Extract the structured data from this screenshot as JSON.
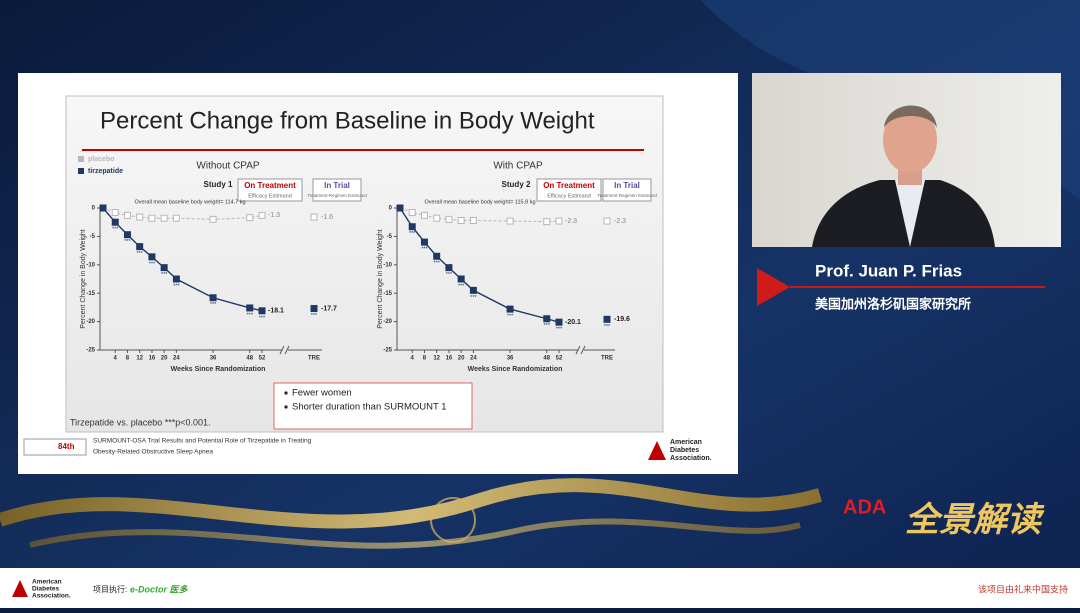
{
  "slide": {
    "title": "Percent Change from Baseline in Body Weight",
    "legend": [
      {
        "name": "placebo",
        "color": "#b7b7b7"
      },
      {
        "name": "tirzepatide",
        "color": "#1f3864"
      }
    ],
    "charts": [
      {
        "type": "line",
        "heading": "Without CPAP",
        "study": "Study 1",
        "on_treatment": {
          "title": "On Treatment",
          "subtitle": "Efficacy Estimand"
        },
        "in_trial": {
          "title": "In Trial",
          "subtitle": "Treatment-Regimen Estimand"
        },
        "note": "Overall mean baseline body weight= 114.7 kg",
        "x_label": "Weeks Since Randomization",
        "y_label": "Percent Change in Body Weight",
        "x": [
          0,
          4,
          8,
          12,
          16,
          20,
          24,
          36,
          48,
          52
        ],
        "xticks": [
          4,
          8,
          12,
          16,
          20,
          24,
          36,
          48,
          52
        ],
        "xlim": [
          0,
          58
        ],
        "ylim": [
          -25,
          0
        ],
        "yticks": [
          0,
          -5,
          -10,
          -15,
          -20,
          -25
        ],
        "tre_label": "TRE",
        "series": [
          {
            "values": [
              0,
              -0.8,
              -1.3,
              -1.6,
              -1.8,
              -1.8,
              -1.8,
              -2.0,
              -1.7,
              -1.3
            ],
            "tre_value": -1.6
          },
          {
            "values": [
              0,
              -2.5,
              -4.7,
              -6.8,
              -8.6,
              -10.5,
              -12.5,
              -15.8,
              -17.6,
              -18.1
            ],
            "tre_value": -17.7,
            "point_labels": [
              null,
              "***",
              "***",
              "***",
              "***",
              "***",
              "***",
              "***",
              "***",
              "***"
            ],
            "tre_point_label": "***"
          }
        ]
      },
      {
        "type": "line",
        "heading": "With CPAP",
        "study": "Study 2",
        "on_treatment": {
          "title": "On Treatment",
          "subtitle": "Efficacy Estimand"
        },
        "in_trial": {
          "title": "In Trial",
          "subtitle": "Treatment-Regimen Estimand"
        },
        "note": "Overall mean baseline body weight= 115.8 kg",
        "x_label": "Weeks Since Randomization",
        "y_label": "Percent Change in Body Weight",
        "x": [
          0,
          4,
          8,
          12,
          16,
          20,
          24,
          36,
          48,
          52
        ],
        "xticks": [
          4,
          8,
          12,
          16,
          20,
          24,
          36,
          48,
          52
        ],
        "xlim": [
          0,
          58
        ],
        "ylim": [
          -25,
          0
        ],
        "yticks": [
          0,
          -5,
          -10,
          -15,
          -20,
          -25
        ],
        "tre_label": "TRE",
        "series": [
          {
            "values": [
              0,
              -0.8,
              -1.3,
              -1.8,
              -2.0,
              -2.2,
              -2.2,
              -2.3,
              -2.4,
              -2.3
            ],
            "tre_value": -2.3
          },
          {
            "values": [
              0,
              -3.3,
              -6.0,
              -8.5,
              -10.5,
              -12.5,
              -14.5,
              -17.8,
              -19.5,
              -20.1
            ],
            "tre_value": -19.6,
            "point_labels": [
              null,
              "***",
              "***",
              "***",
              "***",
              "***",
              "***",
              "***",
              "***",
              "***"
            ],
            "tre_point_label": "***"
          }
        ]
      }
    ],
    "bullets": [
      "Fewer women",
      "Shorter duration than SURMOUNT 1"
    ],
    "footnote": "Tirzepatide vs. placebo ***p<0.001.",
    "citation": [
      "SURMOUNT-OSA Trial Results and Potential Role of Tirzepatide in Treating",
      "Obesity-Related Obstructive Sleep Apnea"
    ],
    "badge": "84th",
    "logo": [
      "American",
      "Diabetes",
      "Association."
    ]
  },
  "speaker": {
    "name": "Prof. Juan P. Frias",
    "affiliation": "美国加州洛杉矶国家研究所"
  },
  "branding": {
    "ada": "ADA",
    "slogan": "全景解读"
  },
  "footer": {
    "logo": [
      "American",
      "Diabetes",
      "Association."
    ],
    "producer_label": "项目执行:",
    "producer": "e-Doctor 医多",
    "sponsor": "该项目由礼来中国支持"
  }
}
